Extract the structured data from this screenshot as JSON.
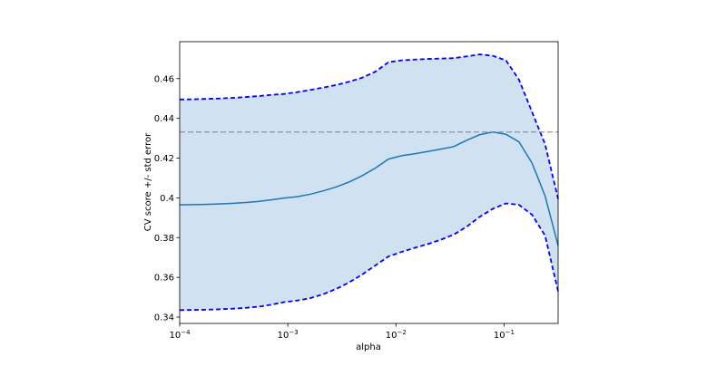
{
  "chart_data": {
    "type": "line",
    "xlabel": "alpha",
    "ylabel": "CV score +/- std error",
    "x": [
      0.0001,
      0.000132,
      0.000174,
      0.00023,
      0.000304,
      0.000401,
      0.00053,
      0.0007,
      0.000924,
      0.00122,
      0.00161,
      0.002127,
      0.002808,
      0.003707,
      0.004894,
      0.00646,
      0.008532,
      0.011262,
      0.014873,
      0.019636,
      0.025929,
      0.034235,
      0.045204,
      0.059689,
      0.07881,
      0.104059,
      0.137401,
      0.181427,
      0.239554,
      0.316228
    ],
    "series": [
      {
        "color": "#1f77b4",
        "dashed": false,
        "values": [
          0.3965,
          0.3966,
          0.3967,
          0.3969,
          0.3972,
          0.3976,
          0.3982,
          0.399,
          0.3999,
          0.4006,
          0.4018,
          0.4035,
          0.4055,
          0.408,
          0.4112,
          0.415,
          0.4195,
          0.4212,
          0.4222,
          0.4233,
          0.4245,
          0.4258,
          0.429,
          0.4318,
          0.4331,
          0.432,
          0.4282,
          0.4175,
          0.401,
          0.376
        ]
      },
      {
        "color": "#0000ff",
        "dashed": true,
        "values": [
          0.4495,
          0.4496,
          0.4498,
          0.45,
          0.4503,
          0.4507,
          0.4512,
          0.4518,
          0.4523,
          0.4532,
          0.4543,
          0.4555,
          0.4568,
          0.4585,
          0.4605,
          0.4635,
          0.4683,
          0.4692,
          0.4696,
          0.4699,
          0.4701,
          0.4703,
          0.4712,
          0.4722,
          0.4715,
          0.4692,
          0.4595,
          0.4432,
          0.427,
          0.3995
        ]
      },
      {
        "color": "#0000ff",
        "dashed": true,
        "values": [
          0.3435,
          0.3436,
          0.3437,
          0.3439,
          0.3442,
          0.3446,
          0.3452,
          0.3462,
          0.3475,
          0.3483,
          0.3495,
          0.3515,
          0.3542,
          0.3575,
          0.3615,
          0.366,
          0.3705,
          0.3728,
          0.3748,
          0.3767,
          0.3789,
          0.3815,
          0.3855,
          0.3905,
          0.3945,
          0.3972,
          0.3965,
          0.3915,
          0.381,
          0.353
        ]
      }
    ],
    "fill_color": "#d0e1f1",
    "reference_line": {
      "value": 0.4331,
      "color": "#808080"
    },
    "xscale": "log",
    "xlim": [
      0.0001,
      0.316228
    ],
    "ylim": [
      0.3368,
      0.4786
    ],
    "xticks": [
      {
        "value": 0.0001,
        "label": "10−4"
      },
      {
        "value": 0.001,
        "label": "10−3"
      },
      {
        "value": 0.01,
        "label": "10−2"
      },
      {
        "value": 0.1,
        "label": "10−1"
      }
    ],
    "yticks": [
      0.34,
      0.36,
      0.38,
      0.4,
      0.42,
      0.44,
      0.46
    ]
  }
}
